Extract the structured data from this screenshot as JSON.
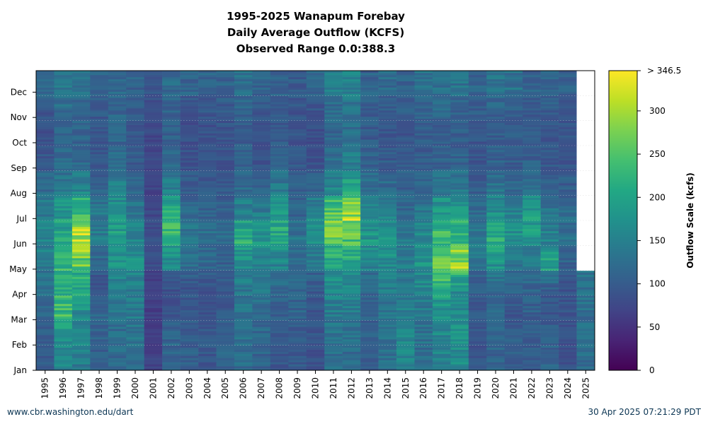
{
  "chart_data": {
    "type": "heatmap",
    "title": [
      "1995-2025 Wanapum Forebay",
      "Daily Average Outflow (KCFS)",
      "Observed Range 0.0:388.3"
    ],
    "x_categories": [
      "1995",
      "1996",
      "1997",
      "1998",
      "1999",
      "2000",
      "2001",
      "2002",
      "2003",
      "2004",
      "2005",
      "2006",
      "2007",
      "2008",
      "2009",
      "2010",
      "2011",
      "2012",
      "2013",
      "2014",
      "2015",
      "2016",
      "2017",
      "2018",
      "2019",
      "2020",
      "2021",
      "2022",
      "2023",
      "2024",
      "2025"
    ],
    "y_categories": [
      "Jan",
      "Feb",
      "Mar",
      "Apr",
      "May",
      "Jun",
      "Jul",
      "Aug",
      "Sep",
      "Oct",
      "Nov",
      "Dec"
    ],
    "colorbar": {
      "label": "Outflow Scale (kcfs)",
      "min": 0,
      "max": 346.5,
      "ticks": [
        0,
        50,
        100,
        150,
        200,
        250,
        300
      ],
      "max_label": "> 346.5",
      "colormap": "viridis"
    },
    "observed_range": [
      0.0,
      388.3
    ],
    "monthly_mean_kcfs": [
      [
        95,
        100,
        110,
        125,
        140,
        165,
        145,
        125,
        95,
        85,
        90,
        120
      ],
      [
        150,
        175,
        235,
        205,
        235,
        200,
        185,
        140,
        120,
        110,
        120,
        140
      ],
      [
        140,
        155,
        165,
        195,
        250,
        320,
        255,
        160,
        125,
        110,
        110,
        130
      ],
      [
        100,
        110,
        115,
        85,
        110,
        150,
        140,
        110,
        95,
        90,
        95,
        110
      ],
      [
        120,
        120,
        130,
        140,
        170,
        195,
        175,
        150,
        125,
        110,
        115,
        120
      ],
      [
        125,
        130,
        145,
        145,
        175,
        165,
        140,
        115,
        100,
        95,
        95,
        110
      ],
      [
        70,
        65,
        65,
        60,
        80,
        85,
        75,
        70,
        75,
        75,
        80,
        90
      ],
      [
        110,
        115,
        90,
        80,
        155,
        225,
        220,
        155,
        115,
        105,
        105,
        120
      ],
      [
        110,
        100,
        100,
        90,
        120,
        140,
        120,
        105,
        90,
        85,
        85,
        110
      ],
      [
        90,
        95,
        90,
        85,
        115,
        125,
        115,
        100,
        90,
        85,
        90,
        110
      ],
      [
        110,
        105,
        100,
        95,
        105,
        120,
        110,
        95,
        90,
        90,
        95,
        110
      ],
      [
        120,
        125,
        130,
        135,
        165,
        215,
        160,
        125,
        105,
        100,
        105,
        130
      ],
      [
        110,
        115,
        120,
        140,
        160,
        175,
        150,
        110,
        90,
        85,
        90,
        110
      ],
      [
        95,
        100,
        105,
        110,
        150,
        205,
        200,
        145,
        110,
        100,
        100,
        110
      ],
      [
        100,
        95,
        110,
        110,
        120,
        135,
        115,
        105,
        95,
        90,
        90,
        100
      ],
      [
        85,
        90,
        90,
        95,
        130,
        165,
        165,
        115,
        90,
        80,
        85,
        110
      ],
      [
        125,
        130,
        140,
        160,
        185,
        270,
        260,
        160,
        125,
        110,
        115,
        140
      ],
      [
        120,
        125,
        140,
        155,
        200,
        240,
        305,
        205,
        150,
        125,
        125,
        150
      ],
      [
        105,
        105,
        105,
        110,
        150,
        180,
        165,
        130,
        110,
        100,
        100,
        110
      ],
      [
        125,
        125,
        130,
        140,
        165,
        175,
        155,
        125,
        100,
        95,
        100,
        120
      ],
      [
        160,
        155,
        145,
        140,
        145,
        140,
        120,
        110,
        95,
        90,
        100,
        110
      ],
      [
        120,
        130,
        135,
        160,
        175,
        160,
        140,
        115,
        100,
        100,
        105,
        130
      ],
      [
        150,
        160,
        170,
        215,
        255,
        240,
        190,
        140,
        110,
        100,
        110,
        130
      ],
      [
        165,
        170,
        170,
        160,
        300,
        230,
        190,
        140,
        110,
        100,
        110,
        130
      ],
      [
        90,
        95,
        95,
        100,
        130,
        140,
        120,
        105,
        90,
        90,
        100,
        110
      ],
      [
        110,
        110,
        115,
        115,
        170,
        215,
        175,
        135,
        110,
        100,
        105,
        130
      ],
      [
        105,
        105,
        90,
        110,
        130,
        180,
        155,
        120,
        100,
        100,
        105,
        130
      ],
      [
        95,
        100,
        105,
        110,
        130,
        180,
        200,
        130,
        110,
        95,
        100,
        110
      ],
      [
        110,
        105,
        95,
        90,
        200,
        155,
        135,
        110,
        95,
        90,
        100,
        110
      ],
      [
        85,
        85,
        90,
        90,
        105,
        125,
        120,
        105,
        95,
        90,
        95,
        110
      ],
      [
        120,
        130,
        125,
        130,
        null,
        null,
        null,
        null,
        null,
        null,
        null,
        null
      ]
    ]
  },
  "footer": {
    "left": "www.cbr.washington.edu/dart",
    "right": "30 Apr 2025 07:21:29 PDT"
  }
}
